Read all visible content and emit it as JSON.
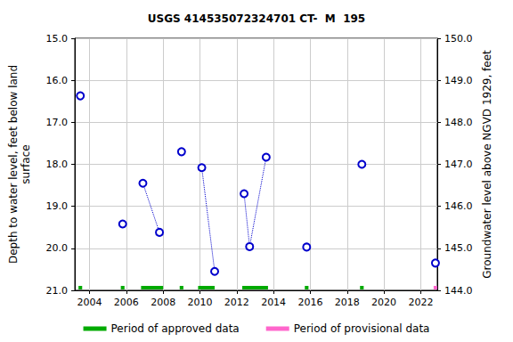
{
  "chart_data": {
    "type": "scatter",
    "title": "USGS 414535072324701 CT-  M  195",
    "y_label": "Depth to water level, feet below land\nsurface",
    "y2_label": "Groundwater level above NGVD 1929, feet",
    "xlim": [
      2003.2,
      2022.9
    ],
    "xticks": [
      2004,
      2006,
      2008,
      2010,
      2012,
      2014,
      2016,
      2018,
      2020,
      2022
    ],
    "ylim": [
      21.0,
      15.0
    ],
    "yticks": [
      {
        "value": 15,
        "label": "15.0"
      },
      {
        "value": 16,
        "label": "16.0"
      },
      {
        "value": 17,
        "label": "17.0"
      },
      {
        "value": 18,
        "label": "18.0"
      },
      {
        "value": 19,
        "label": "19.0"
      },
      {
        "value": 20,
        "label": "20.0"
      },
      {
        "value": 21,
        "label": "21.0"
      }
    ],
    "y2lim": [
      144.0,
      150.0
    ],
    "y2ticks": [
      {
        "value": 144,
        "label": "144.0"
      },
      {
        "value": 145,
        "label": "145.0"
      },
      {
        "value": 146,
        "label": "146.0"
      },
      {
        "value": 147,
        "label": "147.0"
      },
      {
        "value": 148,
        "label": "148.0"
      },
      {
        "value": 149,
        "label": "149.0"
      },
      {
        "value": 150,
        "label": "150.0"
      }
    ],
    "grid": true,
    "legend": "bottom",
    "series": [
      {
        "type": "line",
        "color": "#0000cc",
        "marker": "circle",
        "line_style": "dotted",
        "x": [
          2003.5
        ],
        "values": [
          16.37
        ]
      },
      {
        "type": "line",
        "color": "#0000cc",
        "marker": "circle",
        "line_style": "dotted",
        "x": [
          2005.8
        ],
        "values": [
          19.42
        ]
      },
      {
        "type": "line",
        "color": "#0000cc",
        "marker": "circle",
        "line_style": "dotted",
        "x": [
          2006.9,
          2007.8
        ],
        "values": [
          18.45,
          19.62
        ]
      },
      {
        "type": "line",
        "color": "#0000cc",
        "marker": "circle",
        "line_style": "dotted",
        "x": [
          2009.0
        ],
        "values": [
          17.7
        ]
      },
      {
        "type": "line",
        "color": "#0000cc",
        "marker": "circle",
        "line_style": "dotted",
        "x": [
          2010.1,
          2010.8
        ],
        "values": [
          18.08,
          20.55
        ]
      },
      {
        "type": "line",
        "color": "#0000cc",
        "marker": "circle",
        "line_style": "dotted",
        "x": [
          2012.4,
          2012.7,
          2013.6
        ],
        "values": [
          18.7,
          19.96,
          17.83
        ]
      },
      {
        "type": "line",
        "color": "#0000cc",
        "marker": "circle",
        "line_style": "dotted",
        "x": [
          2015.8
        ],
        "values": [
          19.97
        ]
      },
      {
        "type": "line",
        "color": "#0000cc",
        "marker": "circle",
        "line_style": "dotted",
        "x": [
          2018.8
        ],
        "values": [
          18.0
        ]
      },
      {
        "type": "line",
        "color": "#0000cc",
        "marker": "circle",
        "line_style": "dotted",
        "x": [
          2022.8
        ],
        "values": [
          20.35
        ]
      },
      {
        "type": "period",
        "name": "Period of approved data",
        "color": "#00aa00",
        "ranges": [
          [
            2003.4,
            2003.6
          ],
          [
            2005.7,
            2005.9
          ],
          [
            2006.8,
            2008.0
          ],
          [
            2008.9,
            2009.1
          ],
          [
            2009.9,
            2010.8
          ],
          [
            2012.3,
            2013.7
          ],
          [
            2015.7,
            2015.9
          ],
          [
            2018.7,
            2018.9
          ]
        ]
      },
      {
        "type": "period",
        "name": "Period of provisional data",
        "color": "#ff66cc",
        "ranges": [
          [
            2022.7,
            2022.9
          ]
        ]
      }
    ]
  }
}
